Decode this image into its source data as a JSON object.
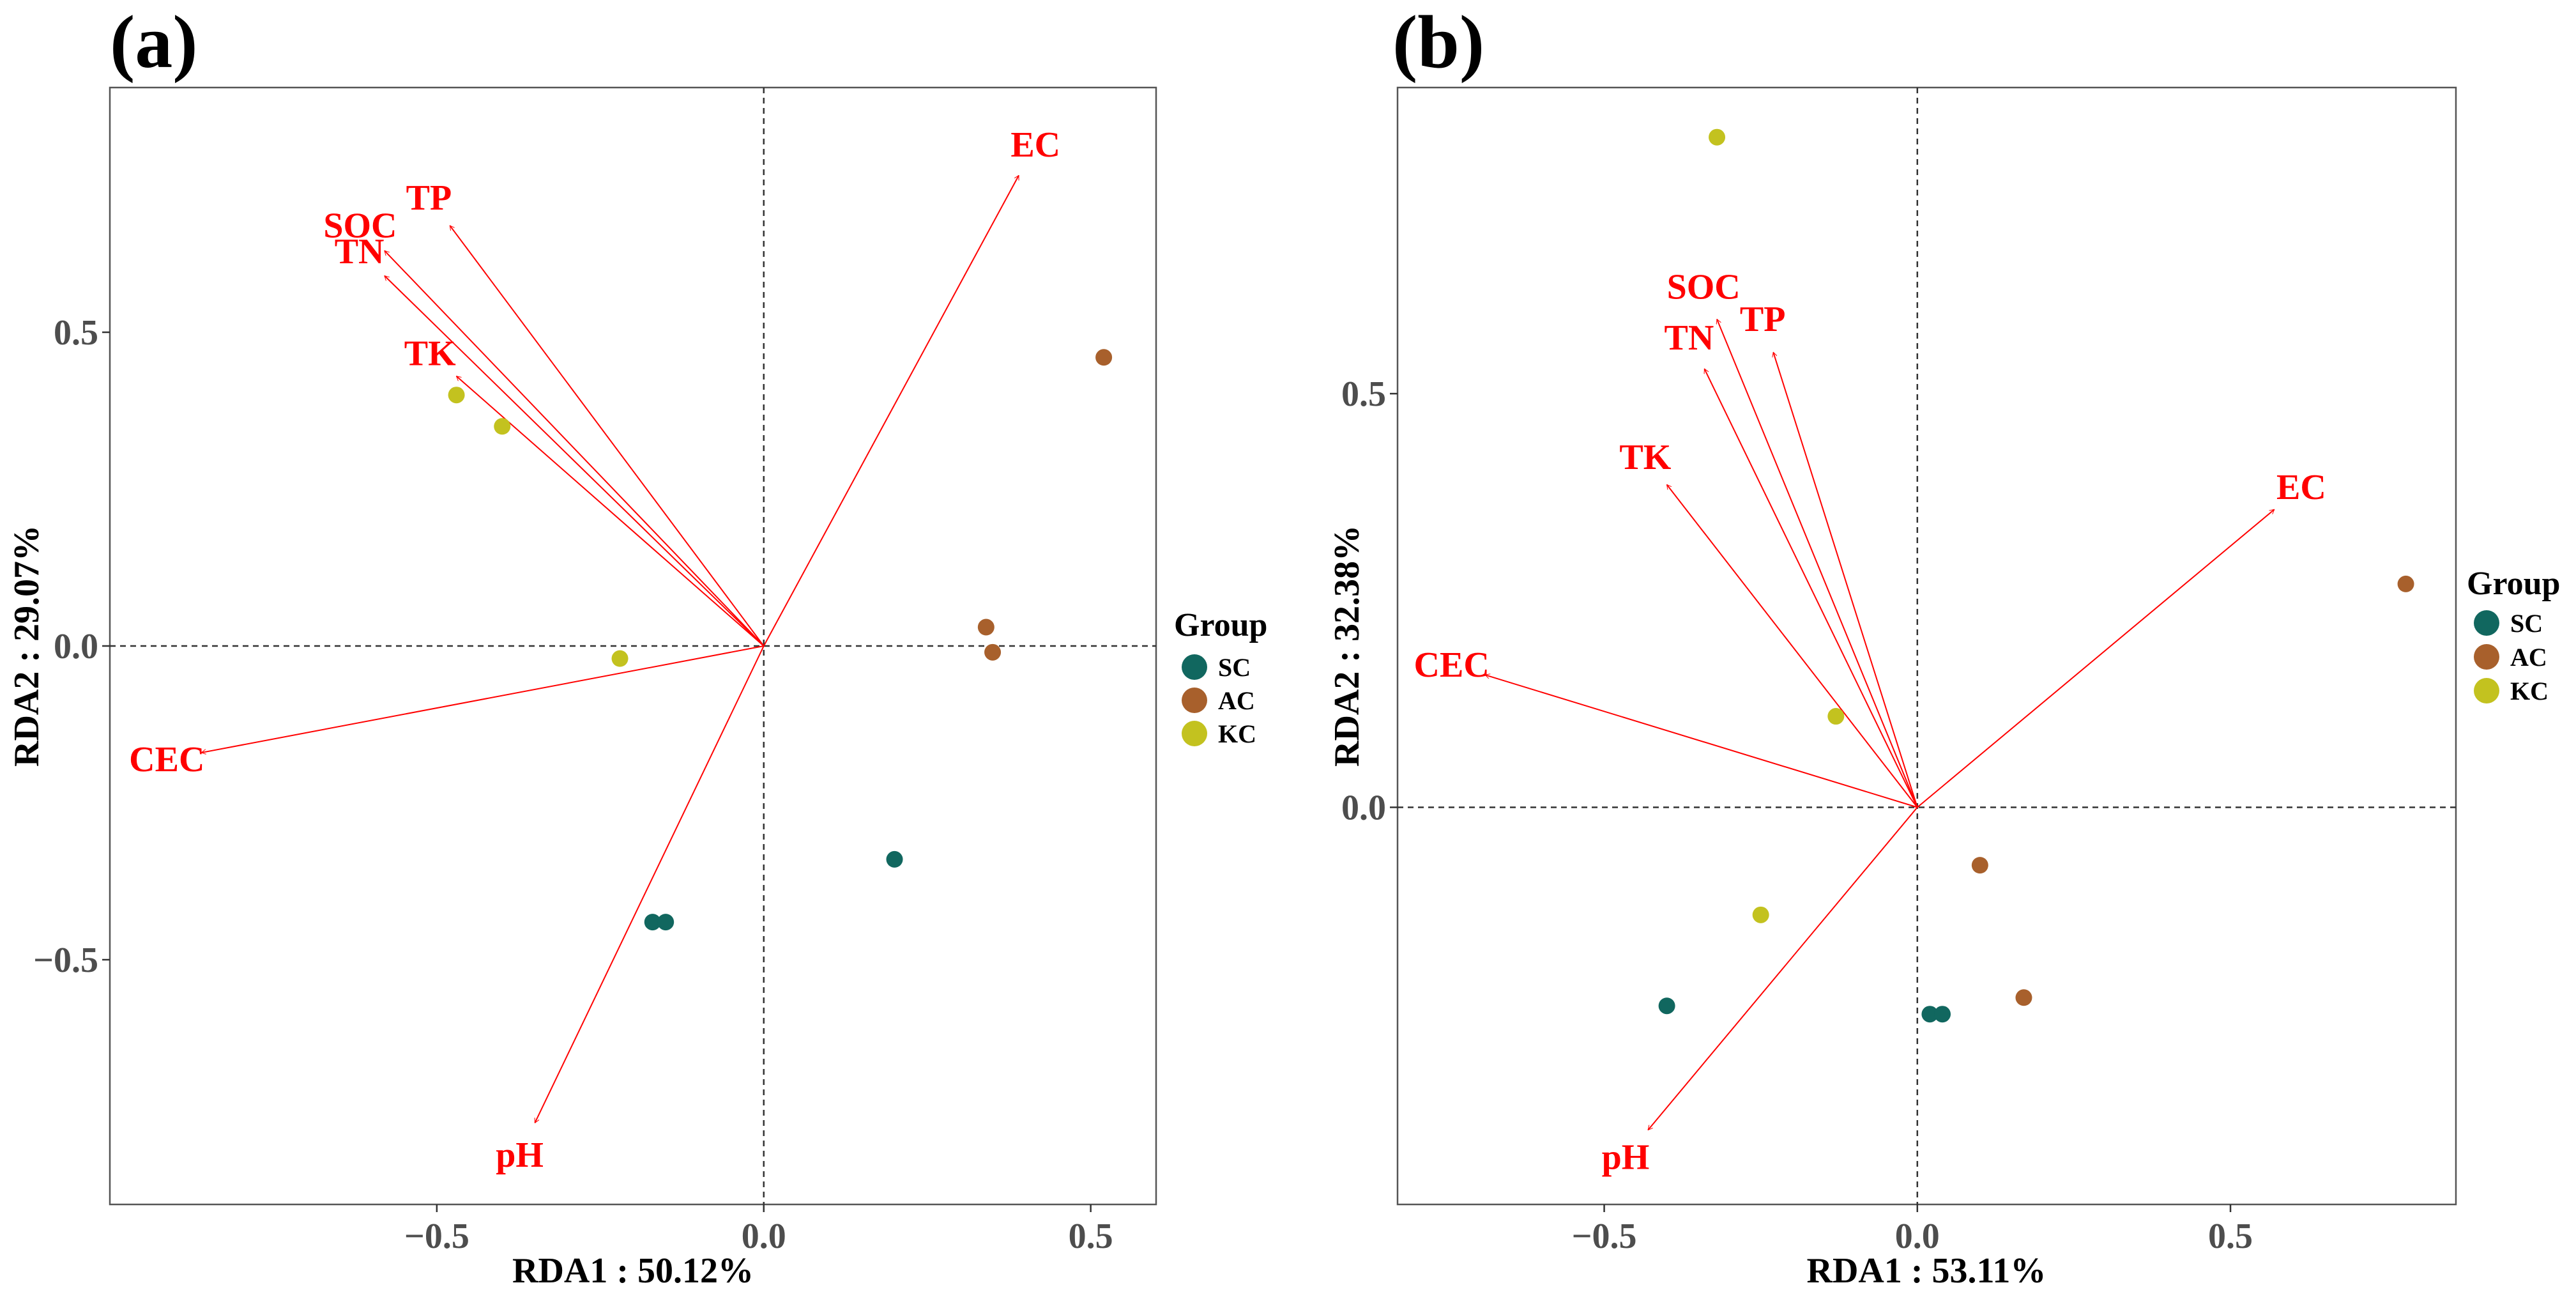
{
  "legend": {
    "title": "Group",
    "items": [
      {
        "label": "SC",
        "color": "#11675f"
      },
      {
        "label": "AC",
        "color": "#a8602c"
      },
      {
        "label": "KC",
        "color": "#c3c21f"
      }
    ]
  },
  "chart_data": [
    {
      "type": "scatter",
      "panel_label": "(a)",
      "xlabel": "RDA1 : 50.12%",
      "ylabel": "RDA2 : 29.07%",
      "xlim": [
        -1.0,
        0.6
      ],
      "ylim": [
        -0.89,
        0.89
      ],
      "xticks": [
        -0.5,
        0.0,
        0.5
      ],
      "xtick_labels": [
        "−0.5",
        "0.0",
        "0.5"
      ],
      "yticks": [
        -0.5,
        0.0,
        0.5
      ],
      "ytick_labels": [
        "−0.5",
        "0.0",
        "0.5"
      ],
      "reference_lines": {
        "x": 0,
        "y": 0
      },
      "grid": false,
      "legend_position": "right",
      "vectors": [
        {
          "label": "EC",
          "x": 0.39,
          "y": 0.75
        },
        {
          "label": "TP",
          "x": -0.48,
          "y": 0.67
        },
        {
          "label": "SOC",
          "x": -0.58,
          "y": 0.63
        },
        {
          "label": "TN",
          "x": -0.58,
          "y": 0.59
        },
        {
          "label": "TK",
          "x": -0.47,
          "y": 0.43
        },
        {
          "label": "CEC",
          "x": -0.86,
          "y": -0.17
        },
        {
          "label": "pH",
          "x": -0.35,
          "y": -0.76
        }
      ],
      "series": [
        {
          "name": "SC",
          "points": [
            [
              -0.17,
              -0.44
            ],
            [
              -0.15,
              -0.44
            ],
            [
              0.2,
              -0.34
            ]
          ]
        },
        {
          "name": "AC",
          "points": [
            [
              0.52,
              0.46
            ],
            [
              0.34,
              0.03
            ],
            [
              0.35,
              -0.01
            ]
          ]
        },
        {
          "name": "KC",
          "points": [
            [
              -0.47,
              0.4
            ],
            [
              -0.4,
              0.35
            ],
            [
              -0.22,
              -0.02
            ]
          ]
        }
      ]
    },
    {
      "type": "scatter",
      "panel_label": "(b)",
      "xlabel": "RDA1 : 53.11%",
      "ylabel": "RDA2 : 32.38%",
      "xlim": [
        -0.83,
        0.86
      ],
      "ylim": [
        -0.48,
        0.87
      ],
      "xticks": [
        -0.5,
        0.0,
        0.5
      ],
      "xtick_labels": [
        "−0.5",
        "0.0",
        "0.5"
      ],
      "yticks": [
        0.0,
        0.5
      ],
      "ytick_labels": [
        "0.0",
        "0.5"
      ],
      "reference_lines": {
        "x": 0,
        "y": 0
      },
      "grid": false,
      "legend_position": "right",
      "vectors": [
        {
          "label": "EC",
          "x": 0.57,
          "y": 0.36
        },
        {
          "label": "SOC",
          "x": -0.32,
          "y": 0.59
        },
        {
          "label": "TP",
          "x": -0.23,
          "y": 0.55
        },
        {
          "label": "TN",
          "x": -0.34,
          "y": 0.53
        },
        {
          "label": "TK",
          "x": -0.4,
          "y": 0.39
        },
        {
          "label": "CEC",
          "x": -0.69,
          "y": 0.16
        },
        {
          "label": "pH",
          "x": -0.43,
          "y": -0.39
        }
      ],
      "series": [
        {
          "name": "SC",
          "points": [
            [
              -0.4,
              -0.24
            ],
            [
              0.02,
              -0.25
            ],
            [
              0.04,
              -0.25
            ]
          ]
        },
        {
          "name": "AC",
          "points": [
            [
              0.78,
              0.27
            ],
            [
              0.1,
              -0.07
            ],
            [
              0.17,
              -0.23
            ]
          ]
        },
        {
          "name": "KC",
          "points": [
            [
              -0.32,
              0.81
            ],
            [
              -0.13,
              0.11
            ],
            [
              -0.25,
              -0.13
            ]
          ]
        }
      ]
    }
  ]
}
